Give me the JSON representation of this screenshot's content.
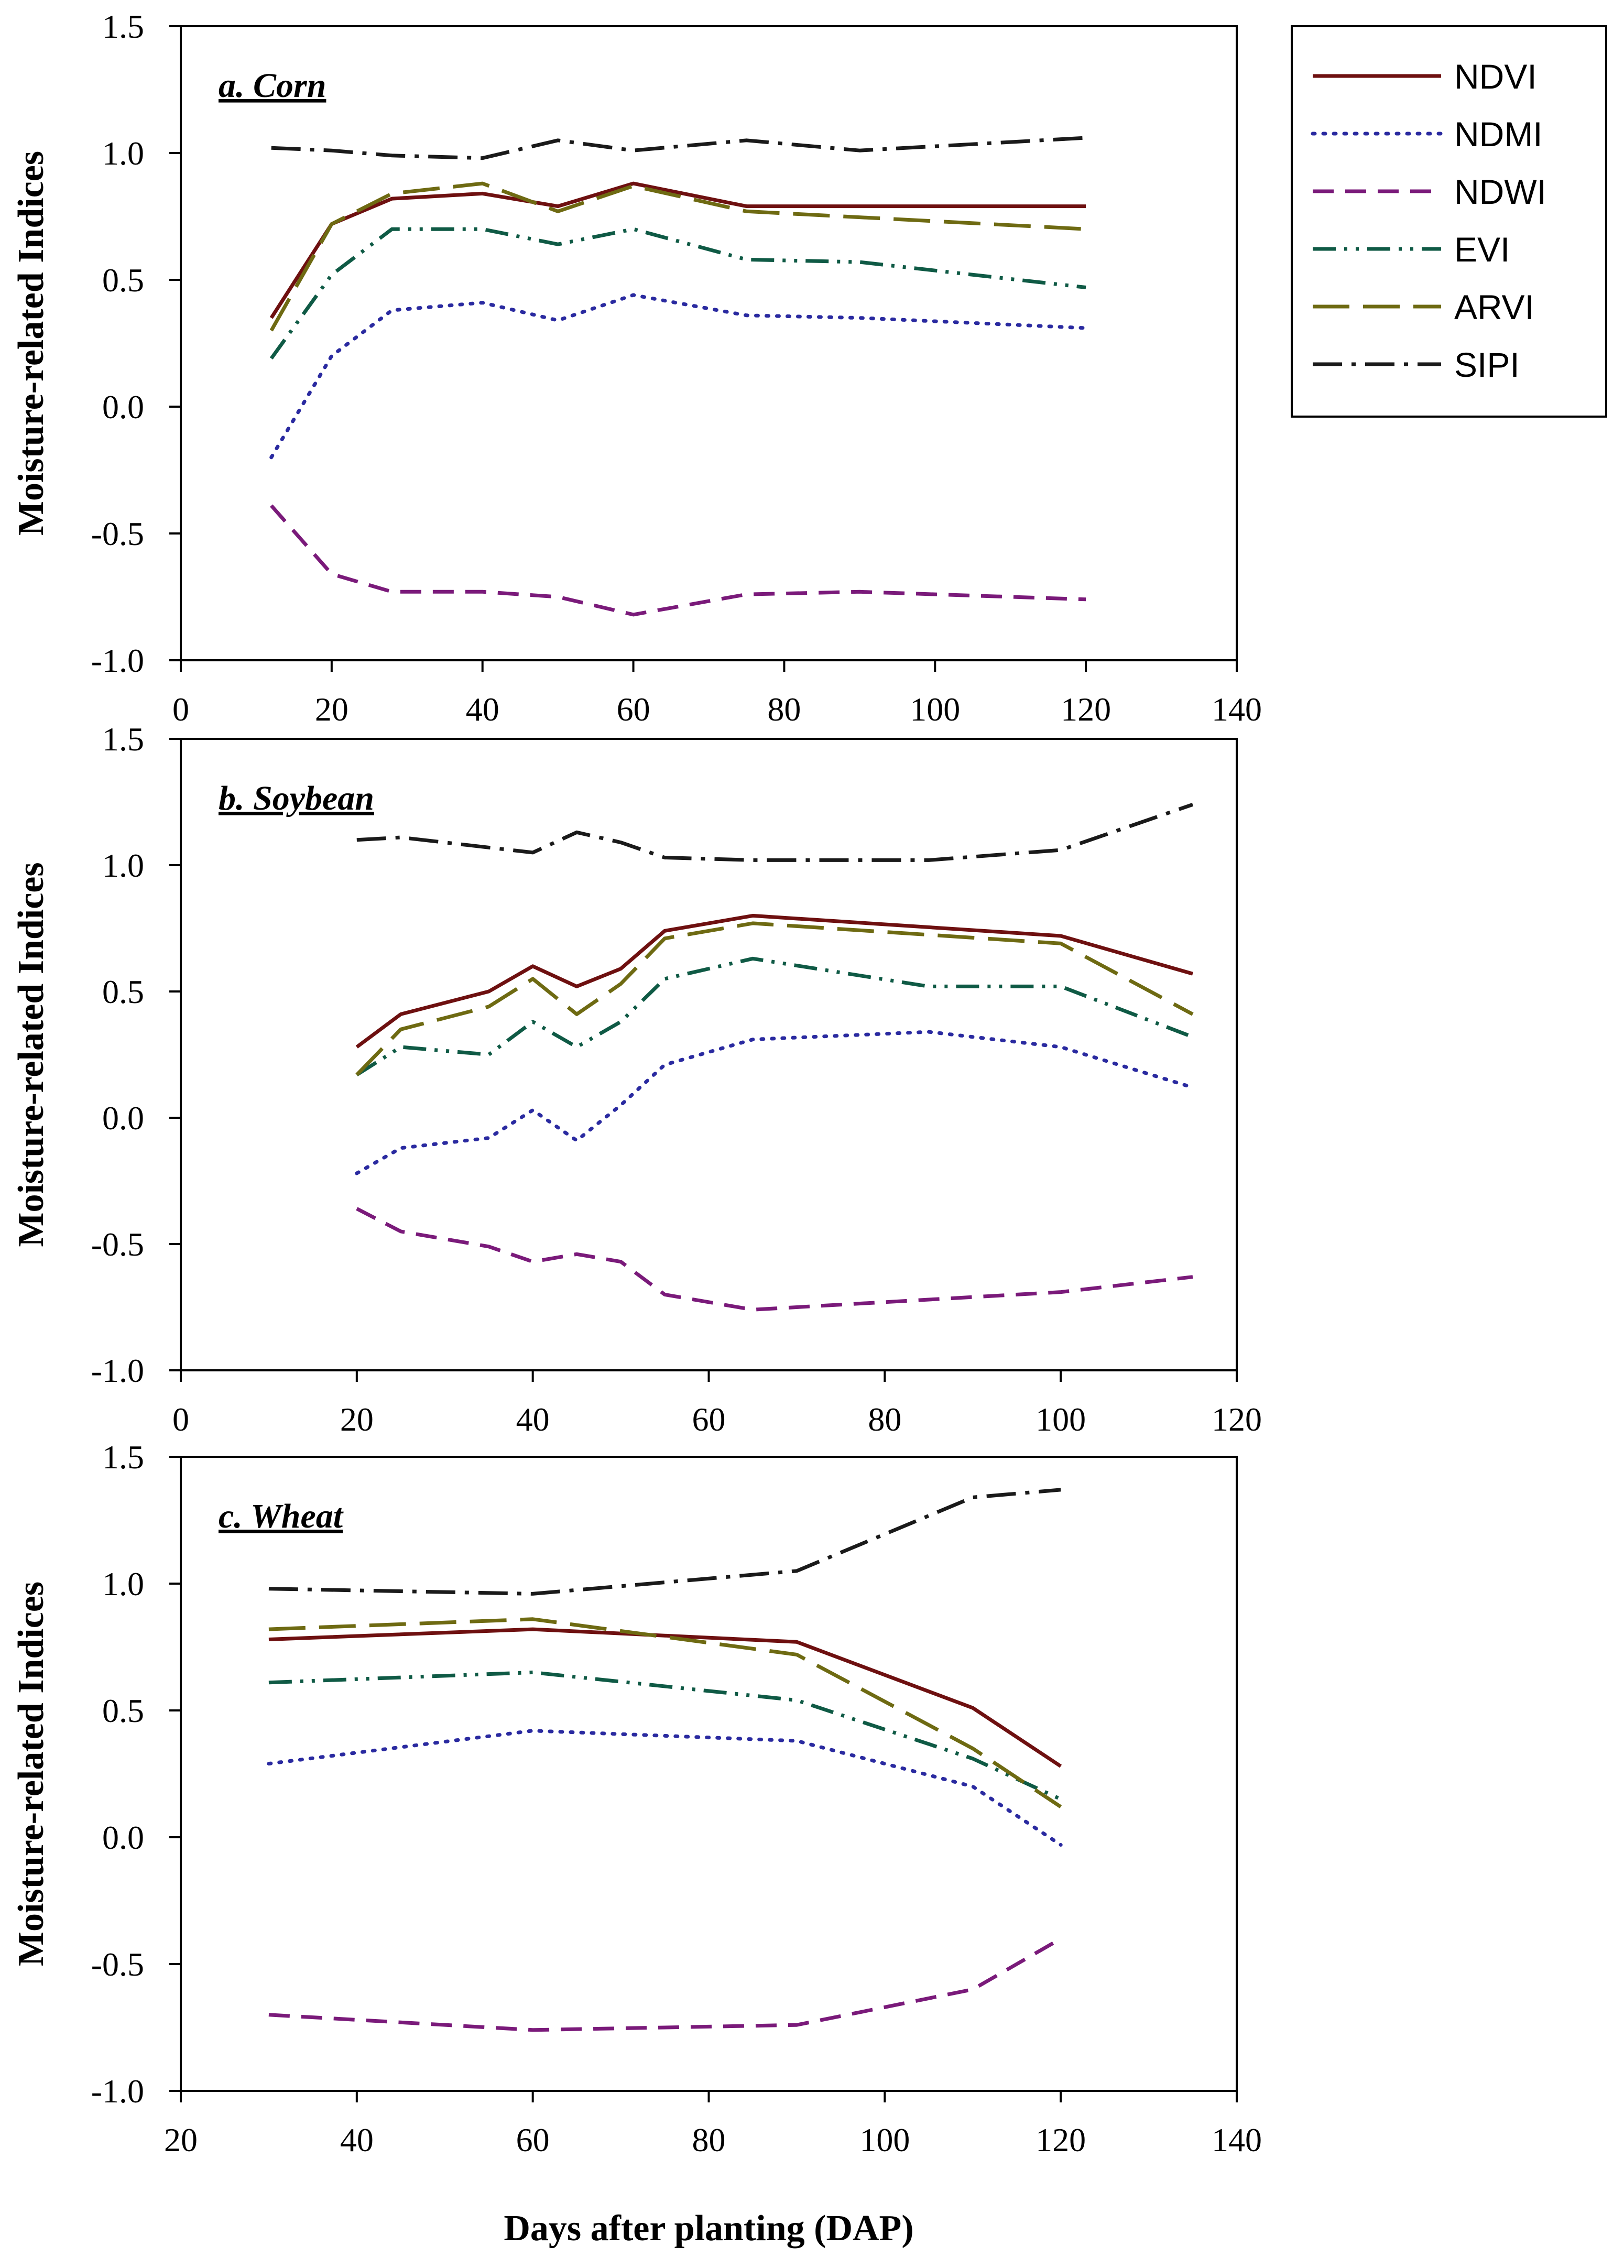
{
  "chart_data": [
    {
      "type": "line",
      "title": "a. Corn",
      "xlabel": "",
      "ylabel": "Moisture-related Indices",
      "xlim": [
        0,
        140
      ],
      "ylim": [
        -1.0,
        1.5
      ],
      "xticks": [
        0,
        20,
        40,
        60,
        80,
        100,
        120,
        140
      ],
      "xtick_labels": [
        "0",
        "20",
        "40",
        "60",
        "80",
        "100",
        "120",
        "140"
      ],
      "yticks": [
        -1.0,
        -0.5,
        0.0,
        0.5,
        1.0,
        1.5
      ],
      "ytick_labels": [
        "-1.0",
        "-0.5",
        "0.0",
        "0.5",
        "1.0",
        "1.5"
      ],
      "series": [
        {
          "name": "NDVI",
          "x": [
            12,
            20,
            28,
            40,
            50,
            60,
            75,
            120
          ],
          "values": [
            0.35,
            0.72,
            0.82,
            0.84,
            0.79,
            0.88,
            0.79,
            0.79
          ]
        },
        {
          "name": "NDMI",
          "x": [
            12,
            20,
            28,
            40,
            50,
            60,
            75,
            90,
            120
          ],
          "values": [
            -0.2,
            0.2,
            0.38,
            0.41,
            0.34,
            0.44,
            0.36,
            0.35,
            0.31
          ]
        },
        {
          "name": "NDWI",
          "x": [
            12,
            20,
            28,
            40,
            50,
            60,
            75,
            90,
            120
          ],
          "values": [
            -0.39,
            -0.66,
            -0.73,
            -0.73,
            -0.75,
            -0.82,
            -0.74,
            -0.73,
            -0.76
          ]
        },
        {
          "name": "EVI",
          "x": [
            12,
            20,
            28,
            40,
            50,
            60,
            75,
            90,
            120
          ],
          "values": [
            0.19,
            0.52,
            0.7,
            0.7,
            0.64,
            0.7,
            0.58,
            0.57,
            0.47
          ]
        },
        {
          "name": "ARVI",
          "x": [
            12,
            20,
            28,
            40,
            50,
            60,
            75,
            120
          ],
          "values": [
            0.3,
            0.72,
            0.84,
            0.88,
            0.77,
            0.87,
            0.77,
            0.7
          ]
        },
        {
          "name": "SIPI",
          "x": [
            12,
            20,
            28,
            40,
            50,
            60,
            75,
            90,
            120
          ],
          "values": [
            1.02,
            1.01,
            0.99,
            0.98,
            1.05,
            1.01,
            1.05,
            1.01,
            1.06
          ]
        }
      ]
    },
    {
      "type": "line",
      "title": "b. Soybean",
      "xlabel": "",
      "ylabel": "Moisture-related Indices",
      "xlim": [
        0,
        120
      ],
      "ylim": [
        -1.0,
        1.5
      ],
      "xticks": [
        0,
        20,
        40,
        60,
        80,
        100,
        120
      ],
      "xtick_labels": [
        "0",
        "20",
        "40",
        "60",
        "80",
        "100",
        "120"
      ],
      "yticks": [
        -1.0,
        -0.5,
        0.0,
        0.5,
        1.0,
        1.5
      ],
      "ytick_labels": [
        "-1.0",
        "-0.5",
        "0.0",
        "0.5",
        "1.0",
        "1.5"
      ],
      "series": [
        {
          "name": "NDVI",
          "x": [
            20,
            25,
            35,
            40,
            45,
            50,
            55,
            65,
            100,
            115
          ],
          "values": [
            0.28,
            0.41,
            0.5,
            0.6,
            0.52,
            0.59,
            0.74,
            0.8,
            0.72,
            0.57
          ]
        },
        {
          "name": "NDMI",
          "x": [
            20,
            25,
            35,
            40,
            45,
            50,
            55,
            65,
            85,
            100,
            115
          ],
          "values": [
            -0.22,
            -0.12,
            -0.08,
            0.03,
            -0.09,
            0.05,
            0.21,
            0.31,
            0.34,
            0.28,
            0.12
          ]
        },
        {
          "name": "NDWI",
          "x": [
            20,
            25,
            35,
            40,
            45,
            50,
            55,
            65,
            85,
            100,
            115
          ],
          "values": [
            -0.36,
            -0.45,
            -0.51,
            -0.57,
            -0.54,
            -0.57,
            -0.7,
            -0.76,
            -0.72,
            -0.69,
            -0.63
          ]
        },
        {
          "name": "EVI",
          "x": [
            20,
            25,
            35,
            40,
            45,
            50,
            55,
            65,
            85,
            100,
            115
          ],
          "values": [
            0.17,
            0.28,
            0.25,
            0.38,
            0.28,
            0.38,
            0.55,
            0.63,
            0.52,
            0.52,
            0.32
          ]
        },
        {
          "name": "ARVI",
          "x": [
            20,
            25,
            35,
            40,
            45,
            50,
            55,
            65,
            100,
            115
          ],
          "values": [
            0.17,
            0.35,
            0.44,
            0.55,
            0.41,
            0.53,
            0.71,
            0.77,
            0.69,
            0.41
          ]
        },
        {
          "name": "SIPI",
          "x": [
            20,
            25,
            35,
            40,
            45,
            50,
            55,
            65,
            85,
            100,
            115
          ],
          "values": [
            1.1,
            1.11,
            1.07,
            1.05,
            1.13,
            1.09,
            1.03,
            1.02,
            1.02,
            1.06,
            1.24
          ]
        }
      ]
    },
    {
      "type": "line",
      "title": "c. Wheat",
      "xlabel": "Days after planting (DAP)",
      "ylabel": "Moisture-related Indices",
      "xlim": [
        20,
        140
      ],
      "ylim": [
        -1.0,
        1.5
      ],
      "xticks": [
        20,
        40,
        60,
        80,
        100,
        120,
        140
      ],
      "xtick_labels": [
        "20",
        "40",
        "60",
        "80",
        "100",
        "120",
        "140"
      ],
      "yticks": [
        -1.0,
        -0.5,
        0.0,
        0.5,
        1.0,
        1.5
      ],
      "ytick_labels": [
        "-1.0",
        "-0.5",
        "0.0",
        "0.5",
        "1.0",
        "1.5"
      ],
      "series": [
        {
          "name": "NDVI",
          "x": [
            30,
            60,
            90,
            110,
            120
          ],
          "values": [
            0.78,
            0.82,
            0.77,
            0.51,
            0.28
          ]
        },
        {
          "name": "NDMI",
          "x": [
            30,
            60,
            90,
            110,
            120
          ],
          "values": [
            0.29,
            0.42,
            0.38,
            0.2,
            -0.03
          ]
        },
        {
          "name": "NDWI",
          "x": [
            30,
            60,
            90,
            110,
            120
          ],
          "values": [
            -0.7,
            -0.76,
            -0.74,
            -0.6,
            -0.4
          ]
        },
        {
          "name": "EVI",
          "x": [
            30,
            60,
            90,
            110,
            120
          ],
          "values": [
            0.61,
            0.65,
            0.54,
            0.31,
            0.15
          ]
        },
        {
          "name": "ARVI",
          "x": [
            30,
            60,
            90,
            110,
            120
          ],
          "values": [
            0.82,
            0.86,
            0.72,
            0.35,
            0.12
          ]
        },
        {
          "name": "SIPI",
          "x": [
            30,
            60,
            90,
            110,
            120
          ],
          "values": [
            0.98,
            0.96,
            1.05,
            1.34,
            1.37
          ]
        }
      ]
    }
  ],
  "legend": {
    "position": "top-right",
    "entries": [
      {
        "name": "NDVI",
        "color": "#6e1010",
        "dash": "solid"
      },
      {
        "name": "NDMI",
        "color": "#2a2aa0",
        "dash": "dotted"
      },
      {
        "name": "NDWI",
        "color": "#7a1a7a",
        "dash": "dashed"
      },
      {
        "name": "EVI",
        "color": "#0f5a45",
        "dash": "dashdotdot"
      },
      {
        "name": "ARVI",
        "color": "#6e6a12",
        "dash": "longdash"
      },
      {
        "name": "SIPI",
        "color": "#1a1a1a",
        "dash": "dashdot"
      }
    ]
  }
}
